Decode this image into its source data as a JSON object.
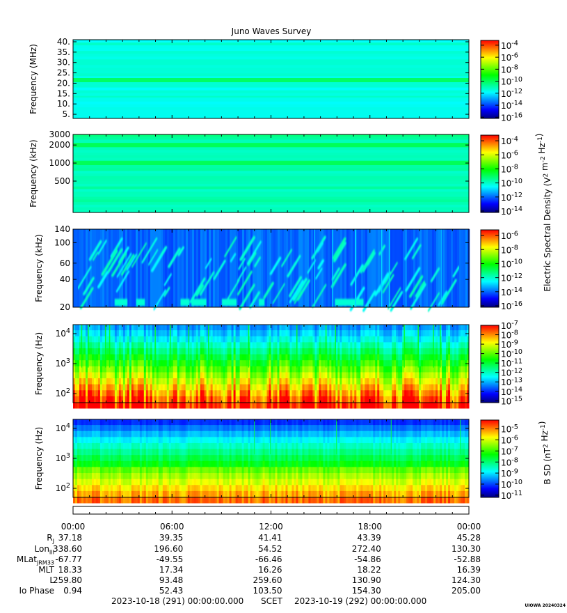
{
  "title": "Juno Waves Survey",
  "colors": {
    "scale": [
      "#00007f",
      "#0000ff",
      "#0080ff",
      "#00ffff",
      "#00ff80",
      "#00ff00",
      "#80ff00",
      "#ffff00",
      "#ff8000",
      "#ff0000"
    ],
    "background": "#ffffff"
  },
  "chart_data": [
    {
      "type": "heatmap",
      "panel": "high-frequency-mhz",
      "ylabel": "Frequency (MHz)",
      "yticks": [
        "40.",
        "35.",
        "30.",
        "25.",
        "20.",
        "15.",
        "10.",
        "5."
      ],
      "ytick_values": [
        40,
        35,
        30,
        25,
        20,
        15,
        10,
        5
      ],
      "ylim": [
        3,
        41
      ],
      "yscale": "linear",
      "colorbar_ticks": [
        "10^-4",
        "10^-6",
        "10^-8",
        "10^-10",
        "10^-12",
        "10^-14",
        "10^-16"
      ],
      "colorbar_exponents": [
        -4,
        -6,
        -8,
        -10,
        -12,
        -14,
        -16
      ],
      "dominant_level": 0.36,
      "bright_band_mhz": 21.5
    },
    {
      "type": "heatmap",
      "panel": "hfr-khz",
      "ylabel": "Frequency (kHz)",
      "yticks": [
        "3000",
        "2000",
        "1000",
        "500"
      ],
      "ytick_values": [
        3000,
        2000,
        1000,
        500
      ],
      "ylim": [
        150,
        3000
      ],
      "yscale": "log",
      "colorbar_ticks": [
        "10^-4",
        "10^-6",
        "10^-8",
        "10^-10",
        "10^-12",
        "10^-14"
      ],
      "colorbar_exponents": [
        -4,
        -6,
        -8,
        -10,
        -12,
        -14
      ],
      "dominant_level": 0.4,
      "bright_bands_khz": [
        2000,
        1000
      ]
    },
    {
      "type": "heatmap",
      "panel": "lfr-khz",
      "ylabel": "Frequency (kHz)",
      "yticks": [
        "140",
        "100",
        "60",
        "40",
        "20"
      ],
      "ytick_values": [
        140,
        100,
        60,
        40,
        20
      ],
      "ylim": [
        20,
        140
      ],
      "yscale": "log",
      "colorbar_ticks": [
        "10^-6",
        "10^-8",
        "10^-10",
        "10^-12",
        "10^-14",
        "10^-16"
      ],
      "colorbar_exponents": [
        -6,
        -8,
        -10,
        -12,
        -14,
        -16
      ],
      "dominant_level": 0.2
    },
    {
      "type": "heatmap",
      "panel": "e-field-hz",
      "ylabel": "Frequency (Hz)",
      "yticks": [
        "10^4",
        "10^3",
        "10^2"
      ],
      "ytick_values": [
        10000,
        1000,
        100
      ],
      "ylim": [
        50,
        20000
      ],
      "yscale": "log",
      "colorbar_ticks": [
        "10^-7",
        "10^-8",
        "10^-9",
        "10^-10",
        "10^-11",
        "10^-12",
        "10^-13",
        "10^-14",
        "10^-15"
      ],
      "colorbar_exponents": [
        -7,
        -8,
        -9,
        -10,
        -11,
        -12,
        -13,
        -14,
        -15
      ],
      "dominant_level": 0.55
    },
    {
      "type": "heatmap",
      "panel": "b-field-hz",
      "ylabel": "Frequency (Hz)",
      "yticks": [
        "10^4",
        "10^3",
        "10^2"
      ],
      "ytick_values": [
        10000,
        1000,
        100
      ],
      "ylim": [
        50,
        20000
      ],
      "yscale": "log",
      "colorbar_ticks": [
        "10^-5",
        "10^-6",
        "10^-7",
        "10^-8",
        "10^-9",
        "10^-10",
        "10^-11"
      ],
      "colorbar_exponents": [
        -5,
        -6,
        -7,
        -8,
        -9,
        -10,
        -11
      ],
      "dominant_level": 0.55
    }
  ],
  "colorbar_titles": {
    "electric": "Electric Spectral Density (V^2 m^-2 Hz^-1)",
    "magnetic": "B SD (nT^2 Hz^-1)"
  },
  "time_axis": {
    "labels": [
      "00:00",
      "06:00",
      "12:00",
      "18:00",
      "00:00"
    ],
    "hours": [
      0,
      6,
      12,
      18,
      24
    ]
  },
  "ephemeris": {
    "rows": [
      {
        "label": "RJ",
        "values": [
          "37.18",
          "39.35",
          "41.41",
          "43.39",
          "45.28"
        ]
      },
      {
        "label": "LonIII",
        "values": [
          "338.60",
          "196.60",
          "54.52",
          "272.40",
          "130.30"
        ]
      },
      {
        "label": "MLatJRM33",
        "values": [
          "-67.77",
          "-49.55",
          "-66.46",
          "-54.86",
          "-52.88"
        ]
      },
      {
        "label": "MLT",
        "values": [
          "18.33",
          "17.34",
          "16.26",
          "18.22",
          "16.39"
        ]
      },
      {
        "label": "L",
        "values": [
          "259.80",
          "93.48",
          "259.60",
          "130.90",
          "124.30"
        ]
      },
      {
        "label": "Io Phase",
        "values": [
          "0.94",
          "52.43",
          "103.50",
          "154.30",
          "205.00"
        ]
      }
    ]
  },
  "footer": {
    "start": "2023-10-18 (291) 00:00:00.000",
    "scet": "SCET",
    "end": "2023-10-19 (292) 00:00:00.000",
    "credit": "UIOWA 20240324"
  }
}
